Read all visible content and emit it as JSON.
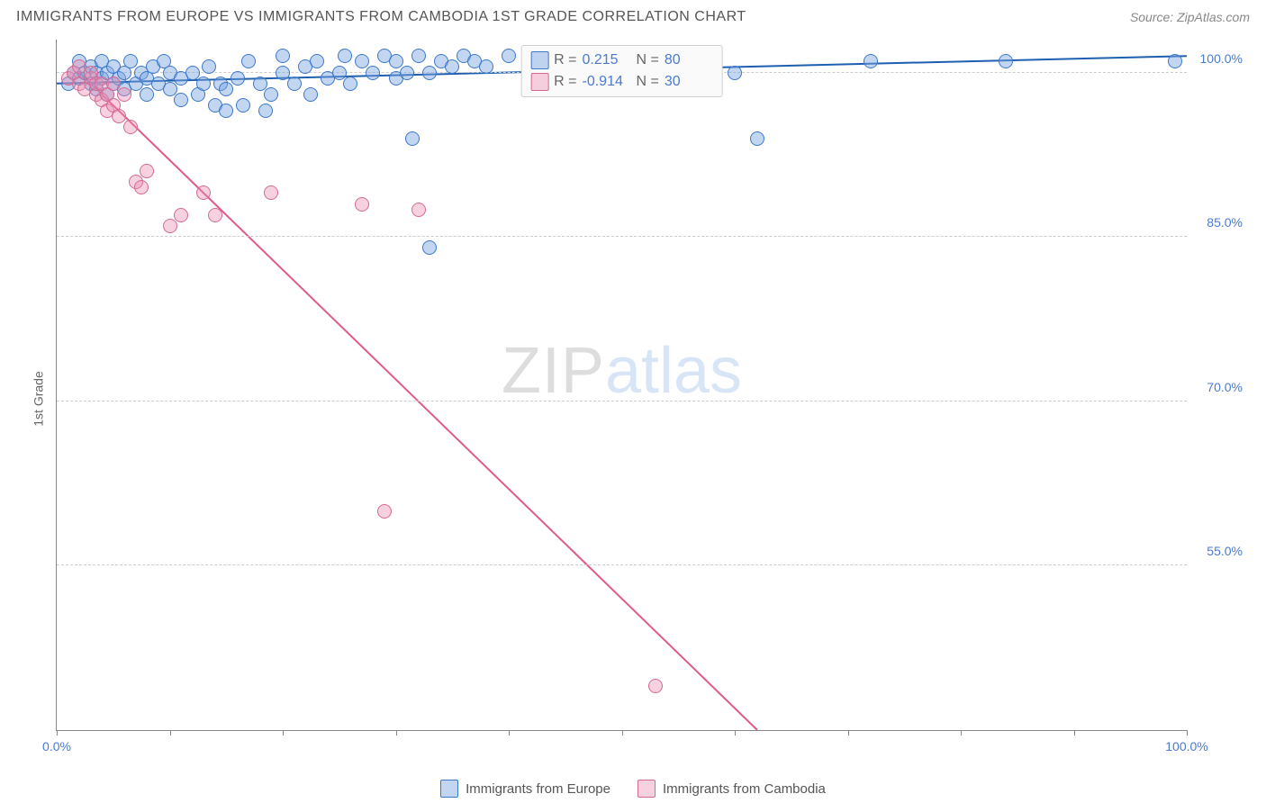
{
  "title": "IMMIGRANTS FROM EUROPE VS IMMIGRANTS FROM CAMBODIA 1ST GRADE CORRELATION CHART",
  "source": "Source: ZipAtlas.com",
  "ylabel": "1st Grade",
  "watermark": {
    "a": "ZIP",
    "b": "atlas"
  },
  "chart": {
    "type": "scatter",
    "background_color": "#ffffff",
    "grid_color": "#cccccc",
    "axis_color": "#888888",
    "xlim": [
      0,
      100
    ],
    "ylim": [
      40,
      103
    ],
    "xticks": [
      0,
      10,
      20,
      30,
      40,
      50,
      60,
      70,
      80,
      90,
      100
    ],
    "xtick_labels": {
      "0": "0.0%",
      "100": "100.0%"
    },
    "yticks": [
      55,
      70,
      85,
      100
    ],
    "ytick_labels": {
      "55": "55.0%",
      "70": "70.0%",
      "85": "85.0%",
      "100": "100.0%"
    },
    "marker_radius": 8,
    "marker_border_width": 1.5,
    "trend_line_width": 2,
    "series": [
      {
        "key": "europe",
        "label": "Immigrants from Europe",
        "fill_color": "rgba(120,165,225,0.45)",
        "stroke_color": "#3d78c7",
        "line_color": "#1f5fb0",
        "R": "0.215",
        "N": "80",
        "trend": {
          "x1": 0,
          "y1": 99.0,
          "x2": 100,
          "y2": 101.5
        },
        "points": [
          [
            1,
            99
          ],
          [
            1.5,
            100
          ],
          [
            2,
            99.5
          ],
          [
            2,
            101
          ],
          [
            2.5,
            100
          ],
          [
            3,
            99
          ],
          [
            3,
            100.5
          ],
          [
            3.5,
            98.5
          ],
          [
            3.5,
            100
          ],
          [
            4,
            99.5
          ],
          [
            4,
            101
          ],
          [
            4.5,
            98
          ],
          [
            4.5,
            100
          ],
          [
            5,
            99
          ],
          [
            5,
            100.5
          ],
          [
            5.5,
            99.5
          ],
          [
            6,
            100
          ],
          [
            6,
            98.5
          ],
          [
            6.5,
            101
          ],
          [
            7,
            99
          ],
          [
            7.5,
            100
          ],
          [
            8,
            99.5
          ],
          [
            8,
            98
          ],
          [
            8.5,
            100.5
          ],
          [
            9,
            99
          ],
          [
            9.5,
            101
          ],
          [
            10,
            98.5
          ],
          [
            10,
            100
          ],
          [
            11,
            97.5
          ],
          [
            11,
            99.5
          ],
          [
            12,
            100
          ],
          [
            12.5,
            98
          ],
          [
            13,
            99
          ],
          [
            13.5,
            100.5
          ],
          [
            14,
            97
          ],
          [
            14.5,
            99
          ],
          [
            15,
            96.5
          ],
          [
            15,
            98.5
          ],
          [
            16,
            99.5
          ],
          [
            16.5,
            97
          ],
          [
            17,
            101
          ],
          [
            18,
            99
          ],
          [
            18.5,
            96.5
          ],
          [
            19,
            98
          ],
          [
            20,
            100
          ],
          [
            20,
            101.5
          ],
          [
            21,
            99
          ],
          [
            22,
            100.5
          ],
          [
            22.5,
            98
          ],
          [
            23,
            101
          ],
          [
            24,
            99.5
          ],
          [
            25,
            100
          ],
          [
            25.5,
            101.5
          ],
          [
            26,
            99
          ],
          [
            27,
            101
          ],
          [
            28,
            100
          ],
          [
            29,
            101.5
          ],
          [
            30,
            99.5
          ],
          [
            30,
            101
          ],
          [
            31,
            100
          ],
          [
            31.5,
            94
          ],
          [
            32,
            101.5
          ],
          [
            33,
            84
          ],
          [
            33,
            100
          ],
          [
            34,
            101
          ],
          [
            35,
            100.5
          ],
          [
            36,
            101.5
          ],
          [
            37,
            101
          ],
          [
            38,
            100.5
          ],
          [
            40,
            101.5
          ],
          [
            42,
            101
          ],
          [
            48,
            101.5
          ],
          [
            50,
            101
          ],
          [
            55,
            99
          ],
          [
            56,
            101.5
          ],
          [
            60,
            100
          ],
          [
            62,
            94
          ],
          [
            72,
            101
          ],
          [
            84,
            101
          ],
          [
            99,
            101
          ]
        ]
      },
      {
        "key": "cambodia",
        "label": "Immigrants from Cambodia",
        "fill_color": "rgba(235,140,175,0.40)",
        "stroke_color": "#d46a94",
        "line_color": "#e05a8a",
        "R": "-0.914",
        "N": "30",
        "trend": {
          "x1": 2,
          "y1": 100,
          "x2": 62,
          "y2": 40
        },
        "points": [
          [
            1,
            99.5
          ],
          [
            1.5,
            100
          ],
          [
            2,
            99
          ],
          [
            2,
            100.5
          ],
          [
            2.5,
            98.5
          ],
          [
            3,
            99.5
          ],
          [
            3,
            100
          ],
          [
            3.5,
            98
          ],
          [
            3.5,
            99
          ],
          [
            4,
            97.5
          ],
          [
            4,
            99
          ],
          [
            4.5,
            96.5
          ],
          [
            4.5,
            98
          ],
          [
            5,
            97
          ],
          [
            5,
            99
          ],
          [
            5.5,
            96
          ],
          [
            6,
            98
          ],
          [
            6.5,
            95
          ],
          [
            7,
            90
          ],
          [
            7.5,
            89.5
          ],
          [
            8,
            91
          ],
          [
            10,
            86
          ],
          [
            11,
            87
          ],
          [
            13,
            89
          ],
          [
            14,
            87
          ],
          [
            19,
            89
          ],
          [
            27,
            88
          ],
          [
            29,
            60
          ],
          [
            32,
            87.5
          ],
          [
            53,
            44
          ]
        ]
      }
    ]
  },
  "legend_top": {
    "r_label": "R =",
    "n_label": "N ="
  }
}
